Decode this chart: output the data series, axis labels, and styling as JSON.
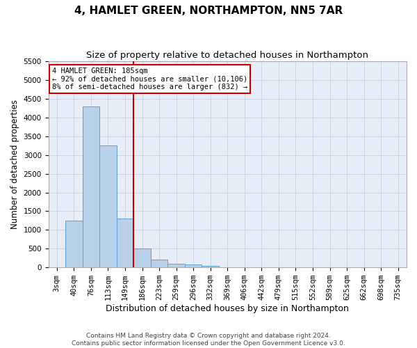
{
  "title": "4, HAMLET GREEN, NORTHAMPTON, NN5 7AR",
  "subtitle": "Size of property relative to detached houses in Northampton",
  "xlabel": "Distribution of detached houses by size in Northampton",
  "ylabel": "Number of detached properties",
  "footer_line1": "Contains HM Land Registry data © Crown copyright and database right 2024.",
  "footer_line2": "Contains public sector information licensed under the Open Government Licence v3.0.",
  "categories": [
    "3sqm",
    "40sqm",
    "76sqm",
    "113sqm",
    "149sqm",
    "186sqm",
    "223sqm",
    "259sqm",
    "296sqm",
    "332sqm",
    "369sqm",
    "406sqm",
    "442sqm",
    "479sqm",
    "515sqm",
    "552sqm",
    "589sqm",
    "625sqm",
    "662sqm",
    "698sqm",
    "735sqm"
  ],
  "values": [
    0,
    1250,
    4300,
    3250,
    1300,
    500,
    200,
    100,
    75,
    50,
    0,
    0,
    0,
    0,
    0,
    0,
    0,
    0,
    0,
    0,
    0
  ],
  "bar_color": "#b8d0e8",
  "bar_edge_color": "#5a9fd4",
  "red_line_index": 5,
  "annotation_line1": "4 HAMLET GREEN: 185sqm",
  "annotation_line2": "← 92% of detached houses are smaller (10,106)",
  "annotation_line3": "8% of semi-detached houses are larger (832) →",
  "ylim": [
    0,
    5500
  ],
  "yticks": [
    0,
    500,
    1000,
    1500,
    2000,
    2500,
    3000,
    3500,
    4000,
    4500,
    5000,
    5500
  ],
  "grid_color": "#c8d0e0",
  "background_color": "#e8eef8",
  "title_fontsize": 11,
  "subtitle_fontsize": 9.5,
  "axis_label_fontsize": 9,
  "tick_fontsize": 7.5,
  "ylabel_fontsize": 8.5
}
